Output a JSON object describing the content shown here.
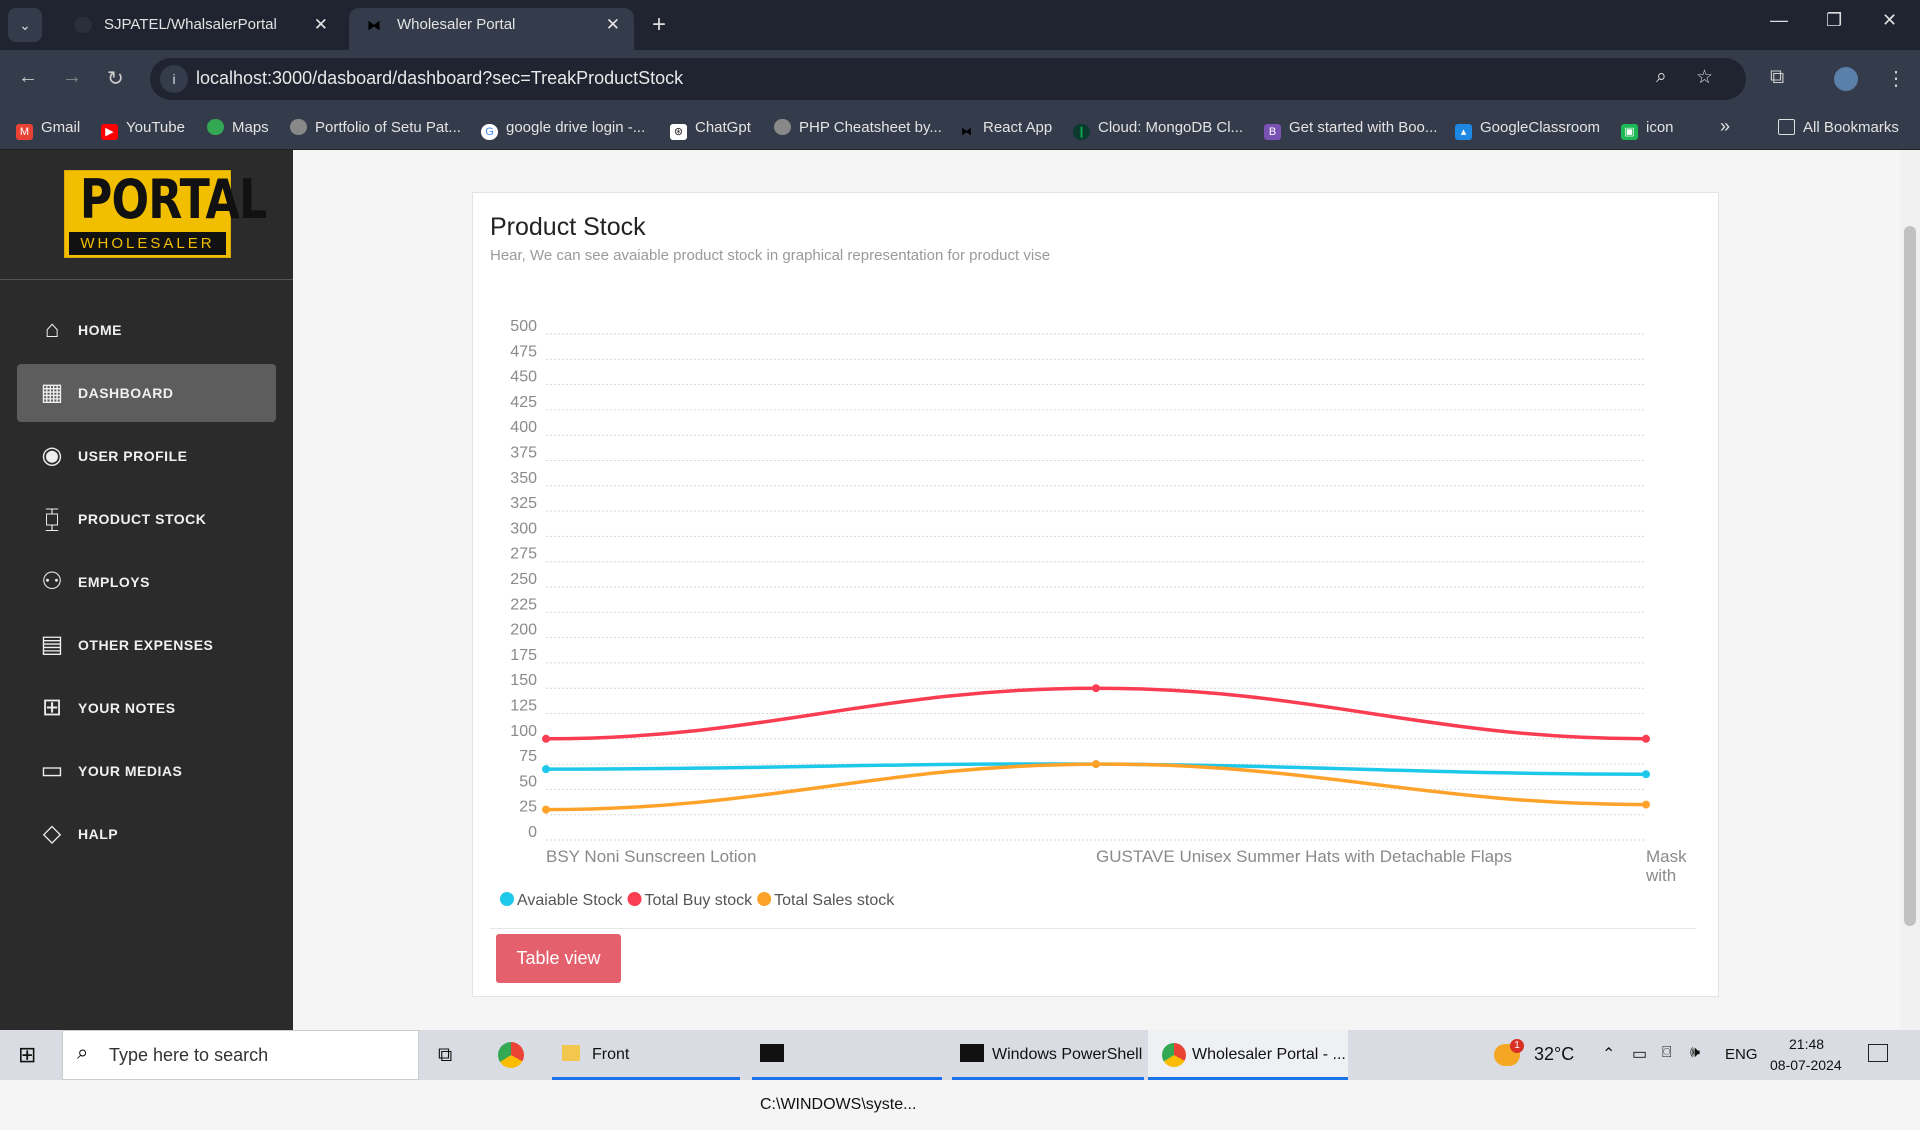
{
  "browser": {
    "tabs": [
      {
        "label": "SJPATEL/WhalsalerPortal",
        "icon": "github-icon"
      },
      {
        "label": "Wholesaler Portal",
        "icon": "bowtie-icon",
        "active": true
      }
    ],
    "url": "localhost:3000/dasboard/dashboard?sec=TreakProductStock",
    "bookmarks": [
      {
        "label": "Gmail",
        "color": "#ea4335"
      },
      {
        "label": "YouTube",
        "color": "#ff0000"
      },
      {
        "label": "Maps",
        "color": "#34a853"
      },
      {
        "label": "Portfolio of Setu Pat...",
        "color": "#777"
      },
      {
        "label": "google drive login -...",
        "color": "#4285f4"
      },
      {
        "label": "ChatGpt",
        "color": "#222"
      },
      {
        "label": "PHP Cheatsheet by...",
        "color": "#777"
      },
      {
        "label": "React App",
        "color": "#111"
      },
      {
        "label": "Cloud: MongoDB Cl...",
        "color": "#13aa52"
      },
      {
        "label": "Get started with Boo...",
        "color": "#7952b3"
      },
      {
        "label": "GoogleClassroom",
        "color": "#1e88e5"
      },
      {
        "label": "icon",
        "color": "#1db954"
      }
    ],
    "all_bookmarks": "All Bookmarks"
  },
  "logo": {
    "top": "PORTAL",
    "bottom": "WHOLESALER"
  },
  "sidebar": {
    "items": [
      {
        "label": "HOME",
        "icon": "home-icon"
      },
      {
        "label": "DASHBOARD",
        "icon": "dashboard-icon",
        "active": true
      },
      {
        "label": "USER PROFILE",
        "icon": "user-circle-icon"
      },
      {
        "label": "PRODUCT STOCK",
        "icon": "stock-icon"
      },
      {
        "label": "EMPLOYS",
        "icon": "people-icon"
      },
      {
        "label": "OTHER EXPENSES",
        "icon": "money-icon"
      },
      {
        "label": "YOUR NOTES",
        "icon": "notes-icon"
      },
      {
        "label": "YOUR MEDIAS",
        "icon": "monitor-icon"
      },
      {
        "label": "HALP",
        "icon": "help-icon"
      }
    ]
  },
  "card": {
    "title": "Product Stock",
    "subtitle": "Hear, We can see avaiable product stock in graphical representation for product vise",
    "button": "Table view"
  },
  "chart_data": {
    "type": "line",
    "categories": [
      "BSY Noni Sunscreen Lotion",
      "GUSTAVE Unisex Summer Hats with Detachable Flaps",
      "Mask with"
    ],
    "category_display": [
      [
        "BSY Noni Sunscreen Lotion"
      ],
      [
        "GUSTAVE Unisex Summer Hats with Detachable Flaps"
      ],
      [
        "Mask",
        "with"
      ]
    ],
    "series": [
      {
        "name": "Avaiable Stock",
        "color": "#1ec8ea",
        "values": [
          70,
          75,
          65
        ]
      },
      {
        "name": "Total Buy stock",
        "color": "#fb3d53",
        "values": [
          100,
          150,
          100
        ]
      },
      {
        "name": "Total Sales stock",
        "color": "#fea22a",
        "values": [
          30,
          75,
          35
        ]
      }
    ],
    "ylim": [
      0,
      500
    ],
    "yticks": [
      0,
      25,
      50,
      75,
      100,
      125,
      150,
      175,
      200,
      225,
      250,
      275,
      300,
      325,
      350,
      375,
      400,
      425,
      450,
      475,
      500
    ],
    "grid": true,
    "legend": "bottom-left",
    "smooth": true
  },
  "taskbar": {
    "search_placeholder": "Type here to search",
    "apps": [
      "Front",
      "C:\\WINDOWS\\syste...",
      "Windows PowerShell",
      "Wholesaler Portal - ..."
    ],
    "weather": "32°C",
    "weather_badge": "1",
    "lang": "ENG",
    "time": "21:48",
    "date": "08-07-2024"
  }
}
